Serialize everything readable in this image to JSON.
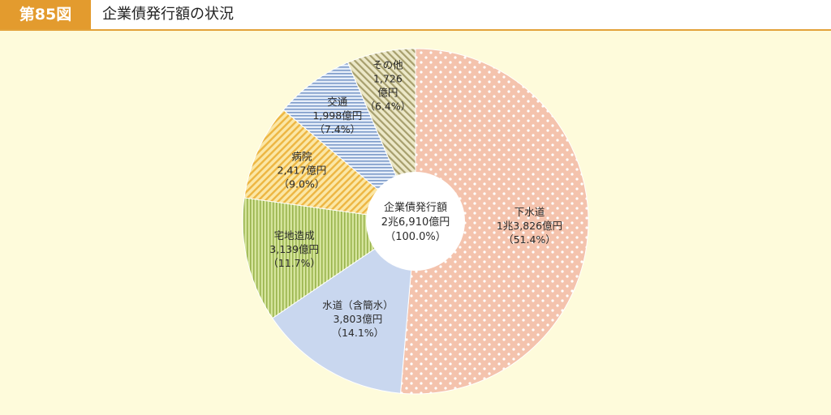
{
  "header": {
    "figure_number": "第85図",
    "title": "企業債発行額の状況"
  },
  "chart_data": {
    "type": "pie",
    "title": "企業債発行額の状況",
    "center_label": [
      "企業債発行額",
      "2兆6,910億円",
      "（100.0%）"
    ],
    "slices": [
      {
        "name": "下水道",
        "value": 13826,
        "amount": "1兆3,826億円",
        "percent": "（51.4%）",
        "color": "#f4c9b4",
        "pattern": "dots"
      },
      {
        "name": "水道（含簡水）",
        "value": 3803,
        "amount": "3,803億円",
        "percent": "（14.1%）",
        "color": "#c9d7ef",
        "pattern": "none"
      },
      {
        "name": "宅地造成",
        "value": 3139,
        "amount": "3,139億円",
        "percent": "（11.7%）",
        "color": "#c7dc8c",
        "pattern": "vlines"
      },
      {
        "name": "病院",
        "value": 2417,
        "amount": "2,417億円",
        "percent": "（9.0%）",
        "color": "#f4cf6e",
        "pattern": "diag"
      },
      {
        "name": "交通",
        "value": 1998,
        "amount": "1,998億円",
        "percent": "（7.4%）",
        "color": "#a8c2e6",
        "pattern": "hlines"
      },
      {
        "name": "その他",
        "value": 1726,
        "amount": "1,726",
        "amount2": "億円",
        "percent": "（6.4%）",
        "color": "#d6d0a3",
        "pattern": "diag2"
      }
    ]
  }
}
